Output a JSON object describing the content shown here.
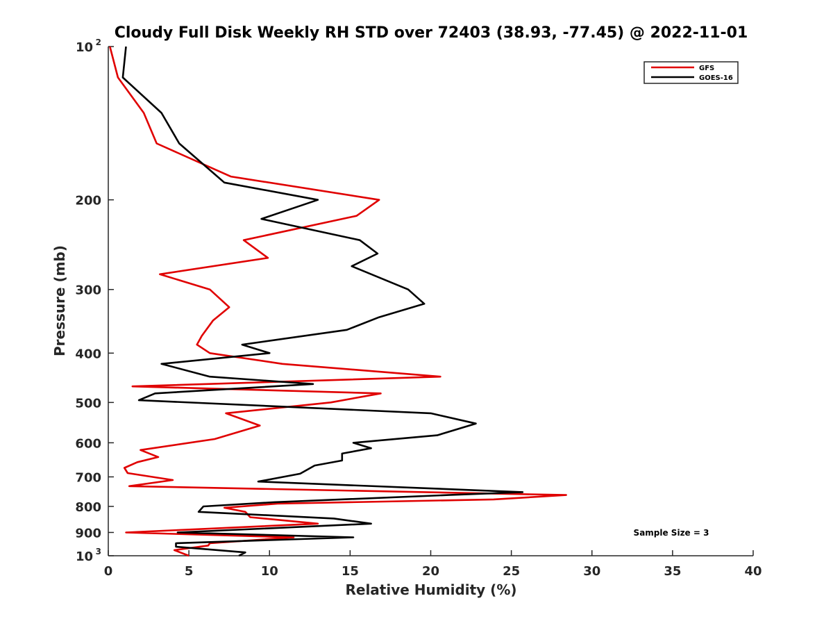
{
  "chart_data": {
    "type": "line",
    "title": "Cloudy Full Disk Weekly RH STD over 72403 (38.93, -77.45) @ 2022-11-01",
    "xlabel": "Relative Humidity (%)",
    "ylabel": "Pressure (mb)",
    "xlim": [
      0,
      40
    ],
    "ylim": [
      100,
      1000
    ],
    "y_scale": "log",
    "y_reversed": true,
    "x_ticks": [
      "0",
      "5",
      "10",
      "15",
      "20",
      "25",
      "30",
      "35",
      "40"
    ],
    "y_ticks": [
      {
        "value": 100,
        "base": "10",
        "exp": "2"
      },
      {
        "value": 200,
        "label": "200"
      },
      {
        "value": 300,
        "label": "300"
      },
      {
        "value": 400,
        "label": "400"
      },
      {
        "value": 500,
        "label": "500"
      },
      {
        "value": 600,
        "label": "600"
      },
      {
        "value": 700,
        "label": "700"
      },
      {
        "value": 800,
        "label": "800"
      },
      {
        "value": 900,
        "label": "900"
      },
      {
        "value": 1000,
        "base": "10",
        "exp": "3"
      }
    ],
    "grid": false,
    "legend_position": "top-right",
    "annotation": "Sample Size = 3",
    "series": [
      {
        "name": "GFS",
        "color": "#e00000",
        "points": [
          [
            0.1,
            100
          ],
          [
            0.6,
            115
          ],
          [
            2.2,
            135
          ],
          [
            3.0,
            155
          ],
          [
            7.6,
            180
          ],
          [
            16.8,
            200
          ],
          [
            15.4,
            215
          ],
          [
            8.4,
            240
          ],
          [
            9.9,
            260
          ],
          [
            3.2,
            280
          ],
          [
            6.3,
            300
          ],
          [
            7.5,
            325
          ],
          [
            6.5,
            345
          ],
          [
            5.8,
            370
          ],
          [
            5.5,
            385
          ],
          [
            6.3,
            400
          ],
          [
            10.8,
            420
          ],
          [
            20.6,
            445
          ],
          [
            1.5,
            465
          ],
          [
            16.9,
            480
          ],
          [
            13.8,
            500
          ],
          [
            7.3,
            525
          ],
          [
            9.4,
            555
          ],
          [
            6.6,
            590
          ],
          [
            2.0,
            620
          ],
          [
            3.1,
            640
          ],
          [
            1.8,
            655
          ],
          [
            1.0,
            672
          ],
          [
            1.2,
            688
          ],
          [
            4.0,
            710
          ],
          [
            1.3,
            730
          ],
          [
            28.4,
            760
          ],
          [
            23.9,
            775
          ],
          [
            10.5,
            790
          ],
          [
            7.2,
            805
          ],
          [
            8.5,
            820
          ],
          [
            8.8,
            840
          ],
          [
            13.0,
            865
          ],
          [
            1.1,
            900
          ],
          [
            11.5,
            920
          ],
          [
            6.3,
            945
          ],
          [
            6.2,
            955
          ],
          [
            4.1,
            975
          ],
          [
            5.0,
            1000
          ]
        ]
      },
      {
        "name": "GOES-16",
        "color": "#000000",
        "points": [
          [
            1.1,
            100
          ],
          [
            0.9,
            115
          ],
          [
            3.3,
            135
          ],
          [
            4.4,
            155
          ],
          [
            7.2,
            185
          ],
          [
            13.0,
            200
          ],
          [
            9.5,
            218
          ],
          [
            15.6,
            240
          ],
          [
            16.7,
            255
          ],
          [
            15.1,
            270
          ],
          [
            18.6,
            300
          ],
          [
            19.6,
            320
          ],
          [
            16.8,
            340
          ],
          [
            14.8,
            360
          ],
          [
            8.3,
            385
          ],
          [
            10.0,
            400
          ],
          [
            3.3,
            420
          ],
          [
            6.3,
            445
          ],
          [
            12.7,
            460
          ],
          [
            2.9,
            480
          ],
          [
            1.9,
            495
          ],
          [
            20.0,
            525
          ],
          [
            22.8,
            550
          ],
          [
            20.4,
            580
          ],
          [
            15.2,
            600
          ],
          [
            16.3,
            615
          ],
          [
            14.5,
            630
          ],
          [
            14.5,
            650
          ],
          [
            12.8,
            665
          ],
          [
            11.9,
            690
          ],
          [
            9.3,
            715
          ],
          [
            25.7,
            750
          ],
          [
            21.1,
            760
          ],
          [
            10.3,
            785
          ],
          [
            5.9,
            800
          ],
          [
            5.6,
            820
          ],
          [
            14.0,
            845
          ],
          [
            16.3,
            865
          ],
          [
            4.3,
            900
          ],
          [
            15.2,
            920
          ],
          [
            4.2,
            945
          ],
          [
            4.2,
            960
          ],
          [
            8.5,
            985
          ],
          [
            8.1,
            1000
          ]
        ]
      }
    ]
  }
}
